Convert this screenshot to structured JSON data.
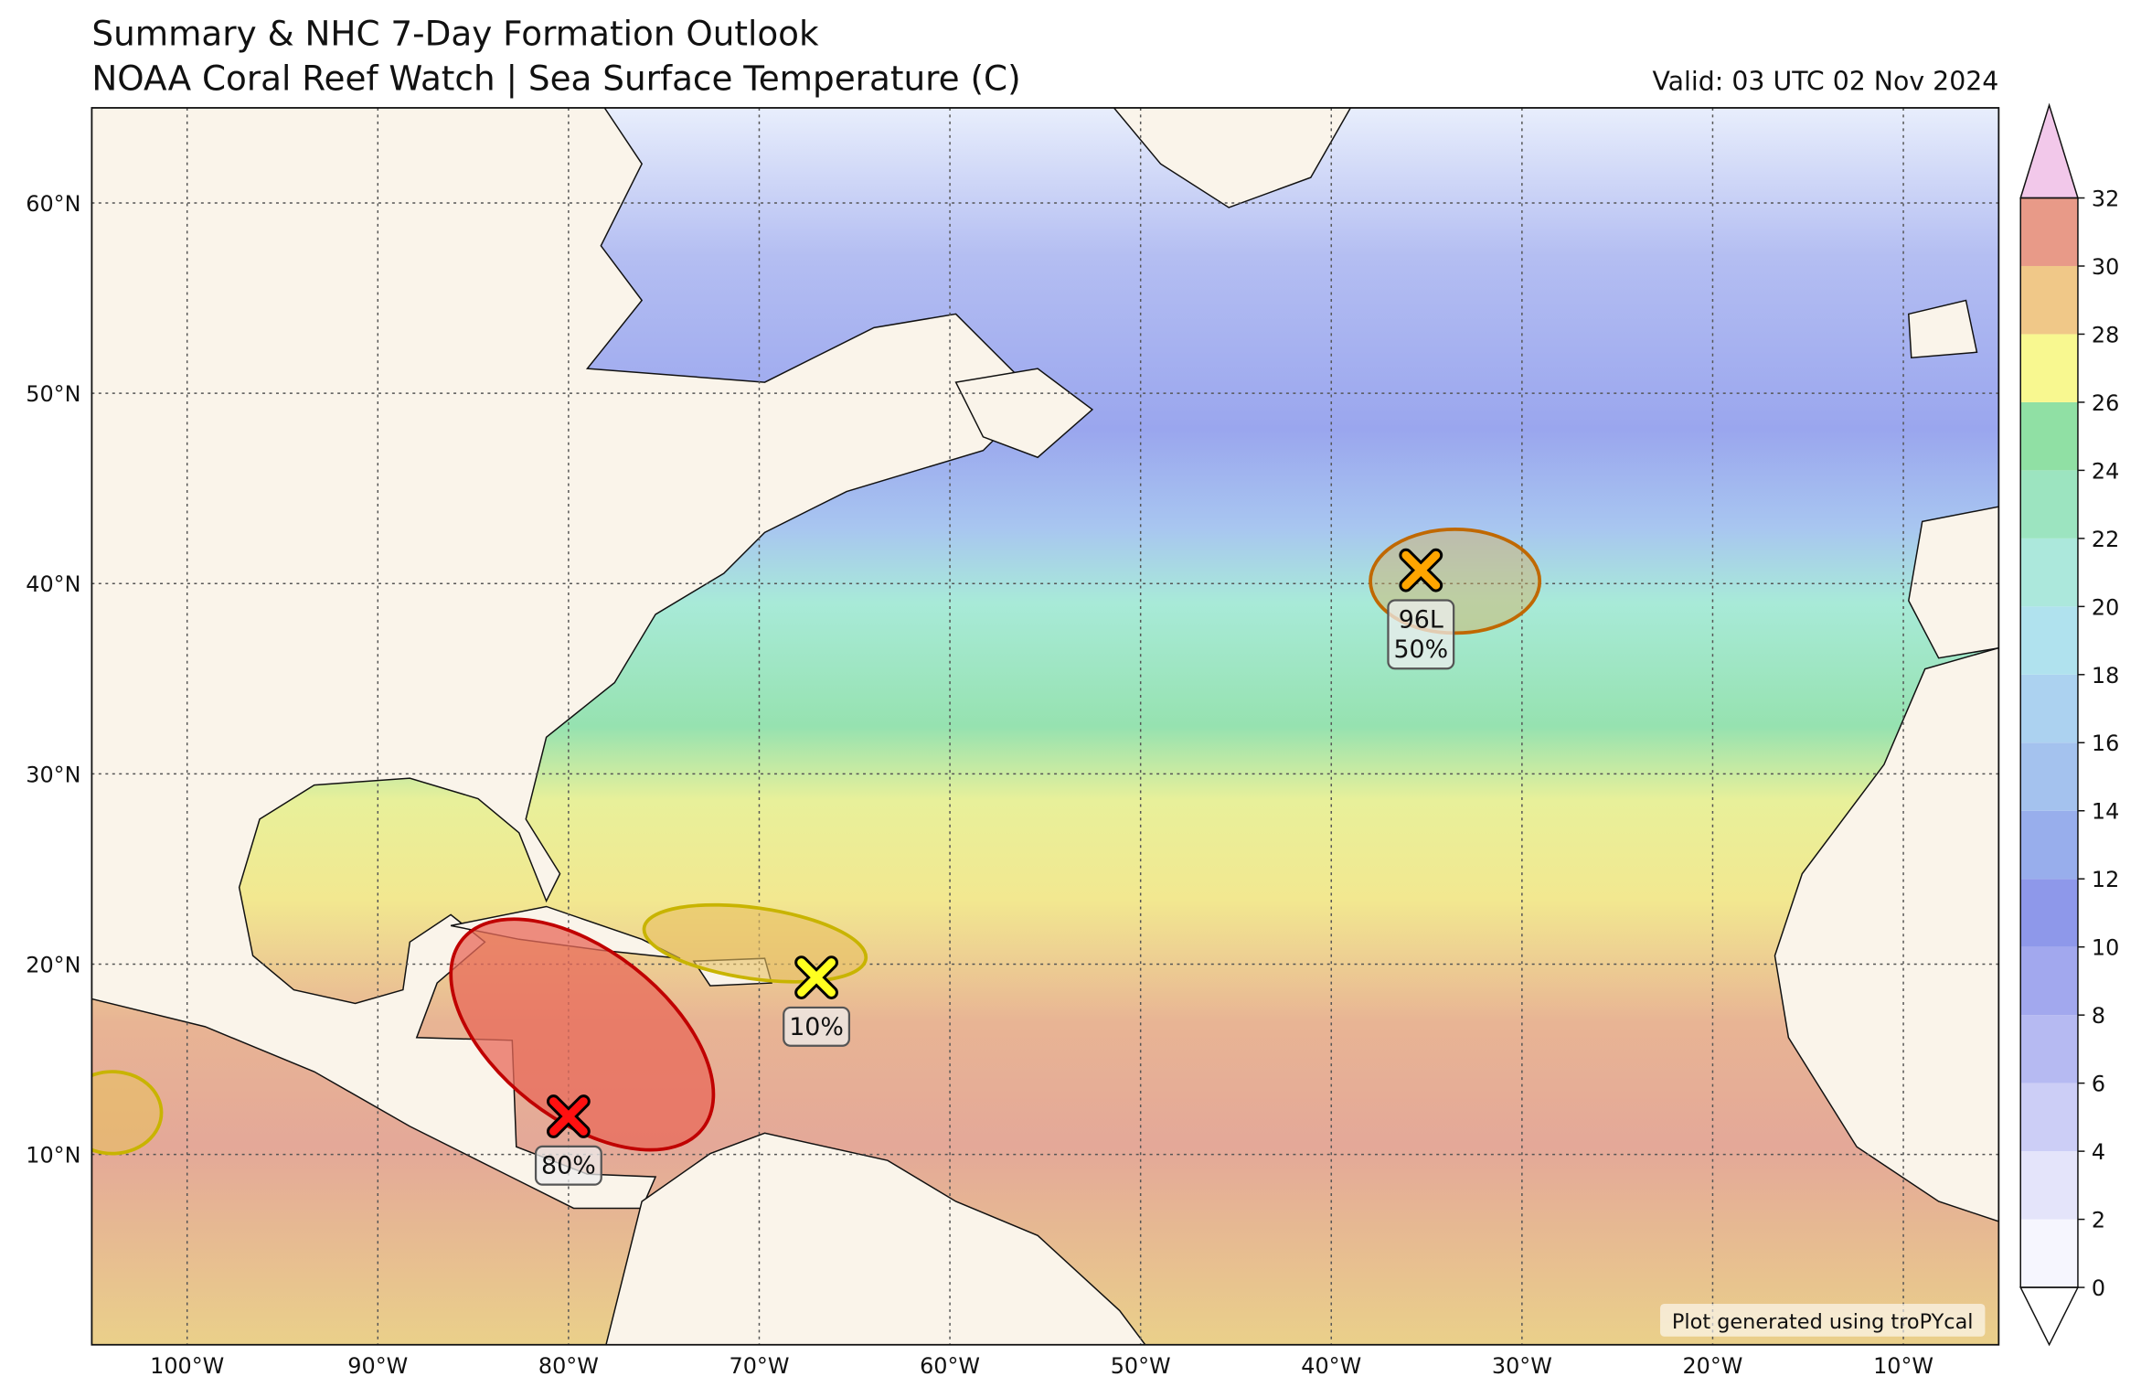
{
  "header": {
    "title": "Summary & NHC 7-Day Formation Outlook",
    "subtitle": "NOAA Coral Reef Watch | Sea Surface Temperature (C)",
    "valid": "Valid: 03 UTC 02 Nov 2024"
  },
  "map": {
    "lon_range": [
      -105,
      -5
    ],
    "lat_range": [
      0,
      65
    ],
    "lon_ticks": [
      {
        "value": -100,
        "label": "100°W"
      },
      {
        "value": -90,
        "label": "90°W"
      },
      {
        "value": -80,
        "label": "80°W"
      },
      {
        "value": -70,
        "label": "70°W"
      },
      {
        "value": -60,
        "label": "60°W"
      },
      {
        "value": -50,
        "label": "50°W"
      },
      {
        "value": -40,
        "label": "40°W"
      },
      {
        "value": -30,
        "label": "30°W"
      },
      {
        "value": -20,
        "label": "20°W"
      },
      {
        "value": -10,
        "label": "10°W"
      }
    ],
    "lat_ticks": [
      {
        "value": 10,
        "label": "10°N"
      },
      {
        "value": 20,
        "label": "20°N"
      },
      {
        "value": 30,
        "label": "30°N"
      },
      {
        "value": 40,
        "label": "40°N"
      },
      {
        "value": 50,
        "label": "50°N"
      },
      {
        "value": 60,
        "label": "60°N"
      }
    ]
  },
  "colorbar": {
    "range": [
      0,
      32
    ],
    "ticks": [
      0,
      2,
      4,
      6,
      8,
      10,
      12,
      14,
      16,
      18,
      20,
      22,
      24,
      26,
      28,
      30,
      32
    ],
    "colors": [
      "#f6f6fe",
      "#e4e4fa",
      "#cccef6",
      "#b6baf2",
      "#a2a8ee",
      "#8e98ea",
      "#98aeec",
      "#a4c2ee",
      "#acd2f0",
      "#b0e2ee",
      "#ace8dc",
      "#9ce4c0",
      "#90e0a4",
      "#f8f890",
      "#f0c888",
      "#e89a88"
    ],
    "over_color": "#f2c8ea",
    "under_color": "#ffffff"
  },
  "disturbances": [
    {
      "lon": -80,
      "lat": 12,
      "label": "80%",
      "color": "#ff1010"
    },
    {
      "lon": -67,
      "lat": 19.3,
      "label": "10%",
      "color": "#ffff20"
    },
    {
      "lon": -35.3,
      "lat": 40.7,
      "name": "96L",
      "label": "50%",
      "color": "#ffa500"
    }
  ],
  "credit": "Plot generated using troPYcal"
}
